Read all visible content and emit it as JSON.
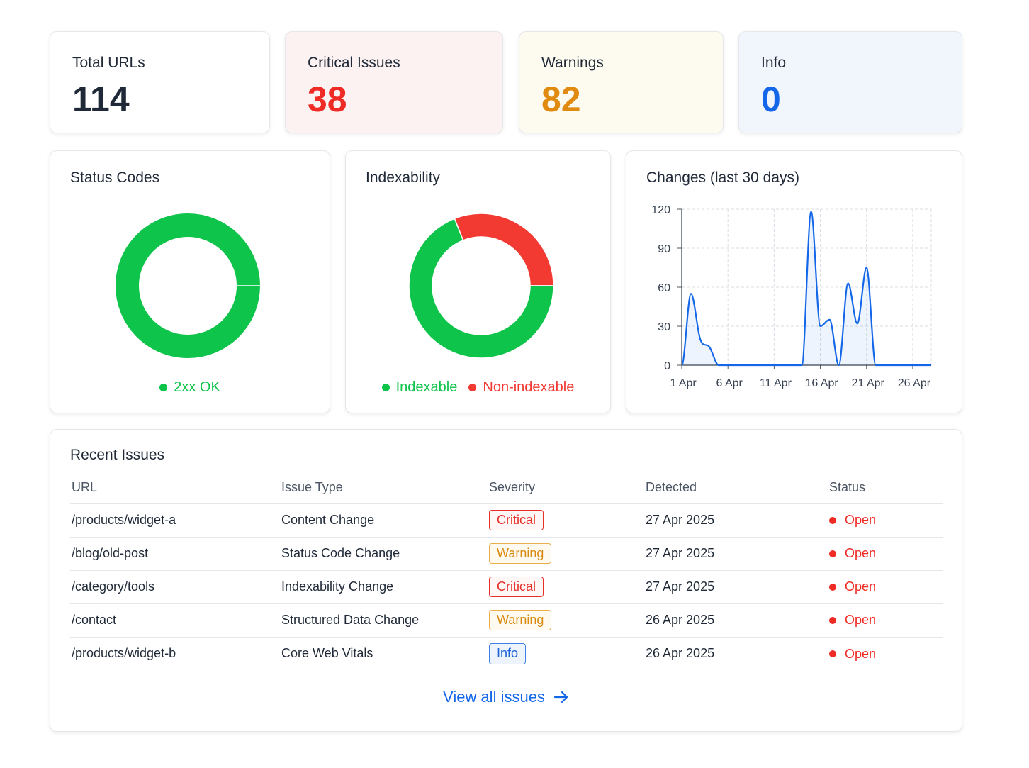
{
  "stats": {
    "total": {
      "label": "Total URLs",
      "value": "114"
    },
    "critical": {
      "label": "Critical Issues",
      "value": "38"
    },
    "warnings": {
      "label": "Warnings",
      "value": "82"
    },
    "info": {
      "label": "Info",
      "value": "0"
    }
  },
  "colors": {
    "green": "#0fc44a",
    "red": "#f23a33",
    "blue": "#1467e8",
    "orange": "#e08a10"
  },
  "status_codes": {
    "title": "Status Codes",
    "legend": [
      {
        "label": "2xx OK",
        "color": "#0fc44a"
      }
    ]
  },
  "indexability": {
    "title": "Indexability",
    "legend": [
      {
        "label": "Indexable",
        "color": "#0fc44a"
      },
      {
        "label": "Non-indexable",
        "color": "#f23a33"
      }
    ]
  },
  "changes": {
    "title": "Changes (last 30 days)"
  },
  "chart_data": [
    {
      "type": "pie",
      "title": "Status Codes",
      "categories": [
        "2xx OK"
      ],
      "values": [
        100
      ]
    },
    {
      "type": "pie",
      "title": "Indexability",
      "categories": [
        "Indexable",
        "Non-indexable"
      ],
      "values": [
        69,
        31
      ]
    },
    {
      "type": "line",
      "title": "Changes (last 30 days)",
      "x": [
        "1 Apr",
        "2 Apr",
        "3 Apr",
        "4 Apr",
        "5 Apr",
        "6 Apr",
        "7 Apr",
        "8 Apr",
        "9 Apr",
        "10 Apr",
        "11 Apr",
        "12 Apr",
        "13 Apr",
        "14 Apr",
        "15 Apr",
        "16 Apr",
        "17 Apr",
        "18 Apr",
        "19 Apr",
        "20 Apr",
        "21 Apr",
        "22 Apr",
        "23 Apr",
        "24 Apr",
        "25 Apr",
        "26 Apr",
        "27 Apr",
        "28 Apr"
      ],
      "series": [
        {
          "values": [
            0,
            55,
            20,
            14,
            0,
            0,
            0,
            0,
            0,
            0,
            0,
            0,
            0,
            0,
            118,
            30,
            35,
            0,
            63,
            32,
            75,
            0,
            0,
            0,
            0,
            0,
            0,
            0
          ]
        }
      ],
      "ylim": [
        0,
        120
      ],
      "yticks": [
        "0",
        "30",
        "60",
        "90",
        "120"
      ],
      "xticks": [
        "1 Apr",
        "6 Apr",
        "11 Apr",
        "16 Apr",
        "21 Apr",
        "26 Apr"
      ],
      "grid": true
    }
  ],
  "issues": {
    "title": "Recent Issues",
    "headers": [
      "URL",
      "Issue Type",
      "Severity",
      "Detected",
      "Status"
    ],
    "rows": [
      {
        "url": "/products/widget-a",
        "type": "Content Change",
        "severity": "Critical",
        "sev_class": "critical",
        "detected": "27 Apr 2025",
        "status": "Open"
      },
      {
        "url": "/blog/old-post",
        "type": "Status Code Change",
        "severity": "Warning",
        "sev_class": "warning",
        "detected": "27 Apr 2025",
        "status": "Open"
      },
      {
        "url": "/category/tools",
        "type": "Indexability Change",
        "severity": "Critical",
        "sev_class": "critical",
        "detected": "27 Apr 2025",
        "status": "Open"
      },
      {
        "url": "/contact",
        "type": "Structured Data Change",
        "severity": "Warning",
        "sev_class": "warning",
        "detected": "26 Apr 2025",
        "status": "Open"
      },
      {
        "url": "/products/widget-b",
        "type": "Core Web Vitals",
        "severity": "Info",
        "sev_class": "info",
        "detected": "26 Apr 2025",
        "status": "Open"
      }
    ],
    "view_all": "View all issues",
    "arrow_icon": "arrow-right-icon"
  }
}
